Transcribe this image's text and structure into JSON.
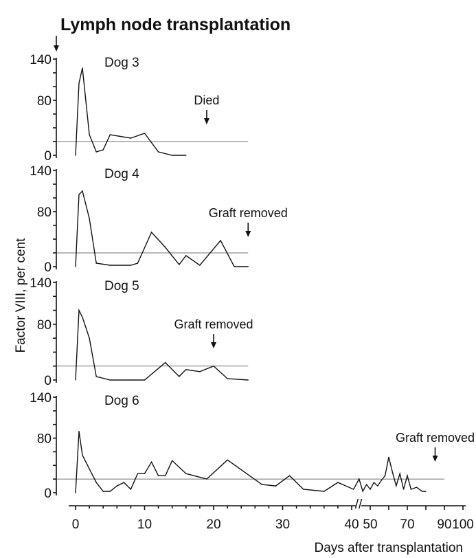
{
  "title": "Lymph node transplantation",
  "y_axis_label": "Factor VIII, per cent",
  "x_axis_label": "Days after transplantation",
  "x_tick_labels": [
    "0",
    "10",
    "20",
    "30",
    "40",
    "50",
    "70",
    "90",
    "100"
  ],
  "x_break_mark": "//",
  "chart_data": [
    {
      "type": "line",
      "panel": "Dog 3",
      "annotation": {
        "label": "Died",
        "day": 19
      },
      "ylim": [
        0,
        140
      ],
      "yticks": [
        0,
        80,
        140
      ],
      "normal_level": 20,
      "x": [
        0,
        0.5,
        1,
        2,
        3,
        4,
        5,
        8,
        10,
        12,
        14,
        16
      ],
      "y": [
        0,
        105,
        127,
        30,
        5,
        8,
        30,
        25,
        32,
        5,
        0,
        0
      ]
    },
    {
      "type": "line",
      "panel": "Dog 4",
      "annotation": {
        "label": "Graft removed",
        "day": 25
      },
      "ylim": [
        0,
        140
      ],
      "yticks": [
        0,
        80,
        140
      ],
      "normal_level": 20,
      "x": [
        0,
        0.5,
        1,
        2,
        3,
        5,
        8,
        9,
        11,
        13,
        15,
        16,
        18,
        21,
        23,
        25
      ],
      "y": [
        0,
        105,
        110,
        70,
        5,
        2,
        2,
        5,
        50,
        28,
        3,
        16,
        2,
        38,
        0,
        0
      ]
    },
    {
      "type": "line",
      "panel": "Dog 5",
      "annotation": {
        "label": "Graft removed",
        "day": 20
      },
      "ylim": [
        0,
        140
      ],
      "yticks": [
        0,
        80,
        140
      ],
      "normal_level": 20,
      "x": [
        0,
        0.5,
        1,
        2,
        3,
        5,
        8,
        10,
        13,
        15,
        16,
        18,
        20,
        22,
        25
      ],
      "y": [
        0,
        100,
        90,
        60,
        5,
        0,
        0,
        0,
        25,
        5,
        15,
        12,
        20,
        2,
        0
      ]
    },
    {
      "type": "line",
      "panel": "Dog 6",
      "annotation": {
        "label": "Graft removed",
        "day": 85
      },
      "ylim": [
        0,
        140
      ],
      "yticks": [
        0,
        80,
        140
      ],
      "normal_level": 20,
      "x": [
        0,
        0.5,
        1,
        2,
        3,
        4,
        5,
        6,
        7,
        8,
        9,
        10,
        11,
        12,
        13,
        14,
        16,
        19,
        22,
        27,
        29,
        31,
        33,
        36,
        38,
        41,
        44,
        46,
        48,
        50,
        52,
        54,
        56,
        58,
        60,
        62,
        64,
        66,
        68,
        70,
        72,
        75,
        78,
        80
      ],
      "y": [
        0,
        90,
        55,
        35,
        15,
        2,
        2,
        10,
        15,
        5,
        28,
        28,
        45,
        25,
        25,
        47,
        28,
        20,
        48,
        12,
        10,
        25,
        5,
        2,
        15,
        5,
        20,
        2,
        12,
        5,
        15,
        10,
        18,
        25,
        52,
        30,
        10,
        28,
        5,
        25,
        5,
        8,
        2,
        2
      ]
    }
  ]
}
